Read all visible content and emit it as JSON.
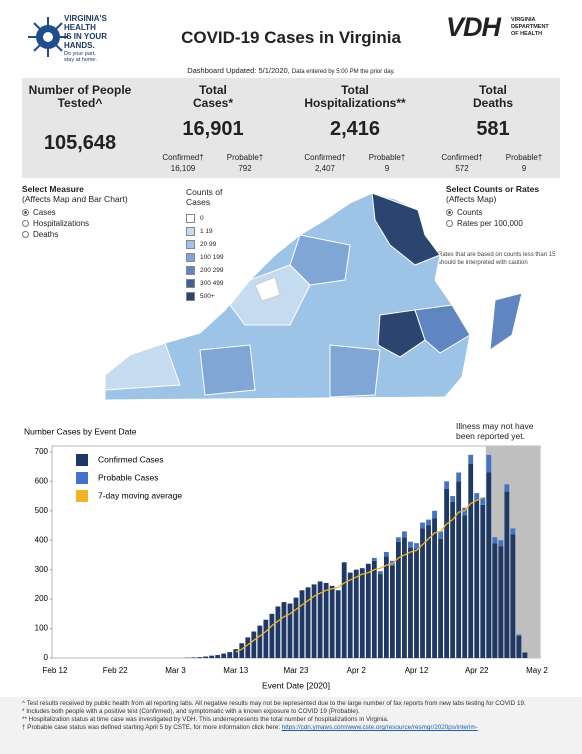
{
  "header": {
    "logo_lines": [
      "VIRGINIA'S",
      "HEALTH",
      "IS IN YOUR",
      "HANDS."
    ],
    "logo_tagline": "Do your part, stay at home.",
    "title": "COVID-19 Cases in Virginia",
    "vdh_logo": "VDH",
    "vdh_sub": [
      "VIRGINIA",
      "DEPARTMENT",
      "OF HEALTH"
    ],
    "updated": "Dashboard Updated: 5/1/2020,",
    "updated_note": "Data entered by 5:00 PM the prior day."
  },
  "stats": [
    {
      "label": "Number of People Tested^",
      "value": "105,648"
    },
    {
      "label": "Total Cases*",
      "value": "16,901",
      "confirmed_label": "Confirmed†",
      "confirmed": "16,109",
      "probable_label": "Probable†",
      "probable": "792"
    },
    {
      "label": "Total Hospitalizations**",
      "value": "2,416",
      "confirmed_label": "Confirmed†",
      "confirmed": "2,407",
      "probable_label": "Probable†",
      "probable": "9"
    },
    {
      "label": "Total Deaths",
      "value": "581",
      "confirmed_label": "Confirmed†",
      "confirmed": "572",
      "probable_label": "Probable†",
      "probable": "9"
    }
  ],
  "controls": {
    "measure_title": "Select Measure",
    "measure_sub": "(Affects Map and Bar Chart)",
    "measure_options": [
      "Cases",
      "Hospitalizations",
      "Deaths"
    ],
    "legend_title": "Counts of Cases",
    "legend": [
      {
        "label": "0",
        "color": "#ffffff"
      },
      {
        "label": "1 19",
        "color": "#c5dcf0"
      },
      {
        "label": "20 99",
        "color": "#9dc3e6"
      },
      {
        "label": "100 199",
        "color": "#7fa6d4"
      },
      {
        "label": "200 299",
        "color": "#5f86c0"
      },
      {
        "label": "300 499",
        "color": "#3f5f96"
      },
      {
        "label": "500+",
        "color": "#2b4570"
      }
    ],
    "rate_title": "Select Counts or Rates",
    "rate_sub": "(Affects Map)",
    "rate_options": [
      "Counts",
      "Rates per 100,000"
    ],
    "rate_note": "Rates that are based on counts less than 15 should be interpreted with caution"
  },
  "chart_data": {
    "type": "bar",
    "title": "Number Cases by Event Date",
    "annotation": "Illness may not have been reported yet.",
    "x_label": "Event Date [2020]",
    "categories": [
      "Feb 12",
      null,
      null,
      null,
      null,
      null,
      null,
      null,
      null,
      null,
      "Feb 22",
      null,
      null,
      null,
      null,
      null,
      null,
      null,
      null,
      null,
      "Mar 3",
      null,
      null,
      null,
      null,
      null,
      null,
      null,
      null,
      null,
      "Mar 13",
      null,
      null,
      null,
      null,
      null,
      null,
      null,
      null,
      null,
      "Mar 23",
      null,
      null,
      null,
      null,
      null,
      null,
      null,
      null,
      null,
      "Apr 2",
      null,
      null,
      null,
      null,
      null,
      null,
      null,
      null,
      null,
      "Apr 12",
      null,
      null,
      null,
      null,
      null,
      null,
      null,
      null,
      null,
      "Apr 22",
      null,
      null,
      null,
      null,
      null,
      null,
      null,
      null,
      null,
      "May 2"
    ],
    "series": [
      {
        "name": "Confirmed Cases",
        "color": "#203864",
        "values": [
          0,
          0,
          0,
          0,
          0,
          0,
          0,
          0,
          0,
          0,
          0,
          0,
          0,
          0,
          0,
          0,
          0,
          0,
          0,
          0,
          0,
          0,
          1,
          2,
          3,
          5,
          8,
          10,
          15,
          20,
          30,
          50,
          70,
          90,
          110,
          130,
          150,
          175,
          190,
          185,
          205,
          230,
          240,
          250,
          260,
          255,
          245,
          230,
          325,
          290,
          300,
          305,
          320,
          330,
          285,
          345,
          315,
          395,
          410,
          375,
          370,
          440,
          450,
          475,
          405,
          575,
          530,
          600,
          485,
          660,
          535,
          520,
          630,
          390,
          380,
          565,
          420,
          75,
          18,
          0,
          0
        ]
      },
      {
        "name": "Probable Cases",
        "color": "#4472c4",
        "values": [
          0,
          0,
          0,
          0,
          0,
          0,
          0,
          0,
          0,
          0,
          0,
          0,
          0,
          0,
          0,
          0,
          0,
          0,
          0,
          0,
          0,
          0,
          0,
          0,
          0,
          0,
          0,
          0,
          0,
          0,
          0,
          0,
          0,
          0,
          0,
          0,
          0,
          0,
          0,
          0,
          0,
          0,
          0,
          0,
          0,
          0,
          0,
          0,
          0,
          0,
          0,
          0,
          0,
          10,
          10,
          15,
          15,
          15,
          20,
          20,
          20,
          20,
          20,
          25,
          25,
          25,
          20,
          30,
          25,
          30,
          25,
          25,
          60,
          20,
          20,
          25,
          20,
          5,
          2,
          0,
          0
        ]
      },
      {
        "name": "7-day moving average",
        "color": "#f0b323",
        "values": [
          null,
          null,
          null,
          null,
          null,
          null,
          null,
          null,
          null,
          null,
          null,
          null,
          null,
          null,
          null,
          null,
          null,
          null,
          null,
          null,
          null,
          null,
          null,
          null,
          null,
          null,
          null,
          null,
          null,
          null,
          20,
          30,
          45,
          60,
          75,
          90,
          110,
          125,
          140,
          150,
          165,
          180,
          195,
          210,
          220,
          230,
          235,
          240,
          255,
          265,
          275,
          285,
          290,
          300,
          305,
          315,
          320,
          340,
          350,
          360,
          365,
          385,
          405,
          425,
          430,
          455,
          470,
          495,
          500,
          525,
          535,
          545,
          null,
          null,
          null,
          null,
          null,
          null,
          null,
          null,
          null
        ]
      }
    ],
    "ylim": [
      0,
      720
    ],
    "yticks": [
      0,
      100,
      200,
      300,
      400,
      500,
      600,
      700
    ]
  },
  "footnotes": [
    "^ Test results received by public health from all reporting labs.  All negative results may not be represented due to the large number of fax reports from new labs testing for COVID 19.",
    "* Includes both people with a positive test (Confirmed), and symptomatic with a known exposure to COVID 19 (Probable).",
    "** Hospitalization status at time case was investigated by VDH. This underrepresents the total number of hospitalizations in Virginia.",
    "† Probable case status was defined starting April 5 by CSTE, for more information click here:"
  ],
  "footnote_link": "https://cdn.ymaws.com/www.cste.org/resource/resmgr/2020ps/interim-"
}
